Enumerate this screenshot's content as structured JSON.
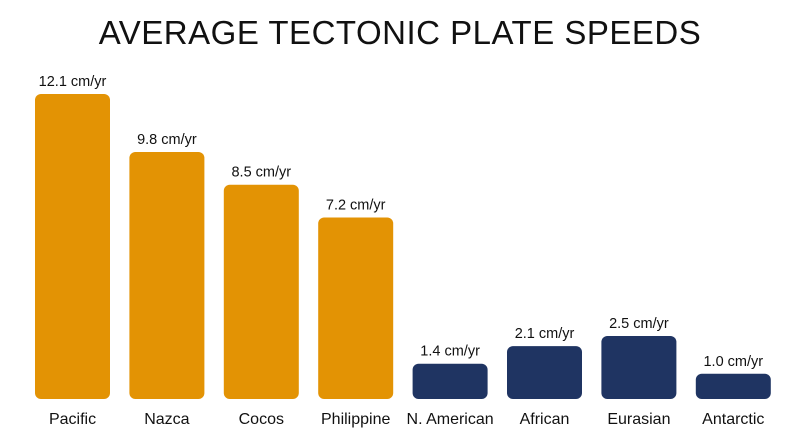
{
  "chart_data": {
    "type": "bar",
    "title": "AVERAGE TECTONIC PLATE SPEEDS",
    "categories": [
      "Pacific",
      "Nazca",
      "Cocos",
      "Philippine",
      "N. American",
      "African",
      "Eurasian",
      "Antarctic"
    ],
    "values": [
      12.1,
      9.8,
      8.5,
      7.2,
      1.4,
      2.1,
      2.5,
      1.0
    ],
    "unit": "cm/yr",
    "data_labels": [
      "12.1 cm/yr",
      "9.8 cm/yr",
      "8.5 cm/yr",
      "7.2 cm/yr",
      "1.4 cm/yr",
      "2.1 cm/yr",
      "2.5 cm/yr",
      "1.0 cm/yr"
    ],
    "bar_colors": [
      "#E39304",
      "#E39304",
      "#E39304",
      "#E39304",
      "#1F3462",
      "#1F3462",
      "#1F3462",
      "#1F3462"
    ],
    "xlabel": "",
    "ylabel": "",
    "ylim": [
      0,
      12.1
    ],
    "grid": false,
    "legend": "none"
  }
}
